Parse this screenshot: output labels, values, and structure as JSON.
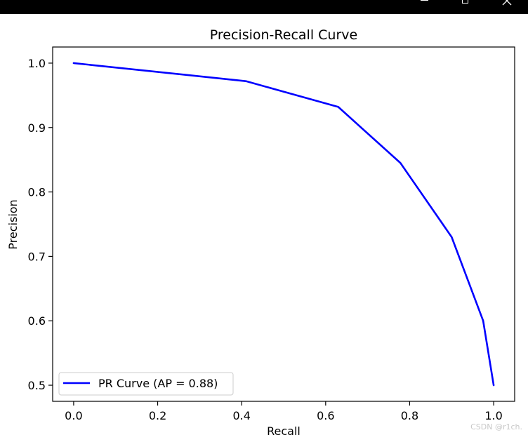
{
  "window": {
    "minimize_icon": "minimize-icon",
    "maximize_icon": "maximize-icon",
    "close_icon": "close-icon"
  },
  "chart_data": {
    "type": "line",
    "title": "Precision-Recall Curve",
    "xlabel": "Recall",
    "ylabel": "Precision",
    "xlim": [
      -0.05,
      1.05
    ],
    "ylim": [
      0.475,
      1.025
    ],
    "xticks": [
      0.0,
      0.2,
      0.4,
      0.6,
      0.8,
      1.0
    ],
    "xtick_labels": [
      "0.0",
      "0.2",
      "0.4",
      "0.6",
      "0.8",
      "1.0"
    ],
    "yticks": [
      0.5,
      0.6,
      0.7,
      0.8,
      0.9,
      1.0
    ],
    "ytick_labels": [
      "0.5",
      "0.6",
      "0.7",
      "0.8",
      "0.9",
      "1.0"
    ],
    "grid": false,
    "legend_position": "lower-left",
    "series": [
      {
        "name": "PR Curve (AP = 0.88)",
        "color": "#0000ff",
        "x": [
          0.0,
          0.41,
          0.63,
          0.778,
          0.9,
          0.975,
          1.0
        ],
        "y": [
          1.0,
          0.972,
          0.932,
          0.845,
          0.73,
          0.6,
          0.5
        ]
      }
    ]
  },
  "watermark": "CSDN @r1ch."
}
